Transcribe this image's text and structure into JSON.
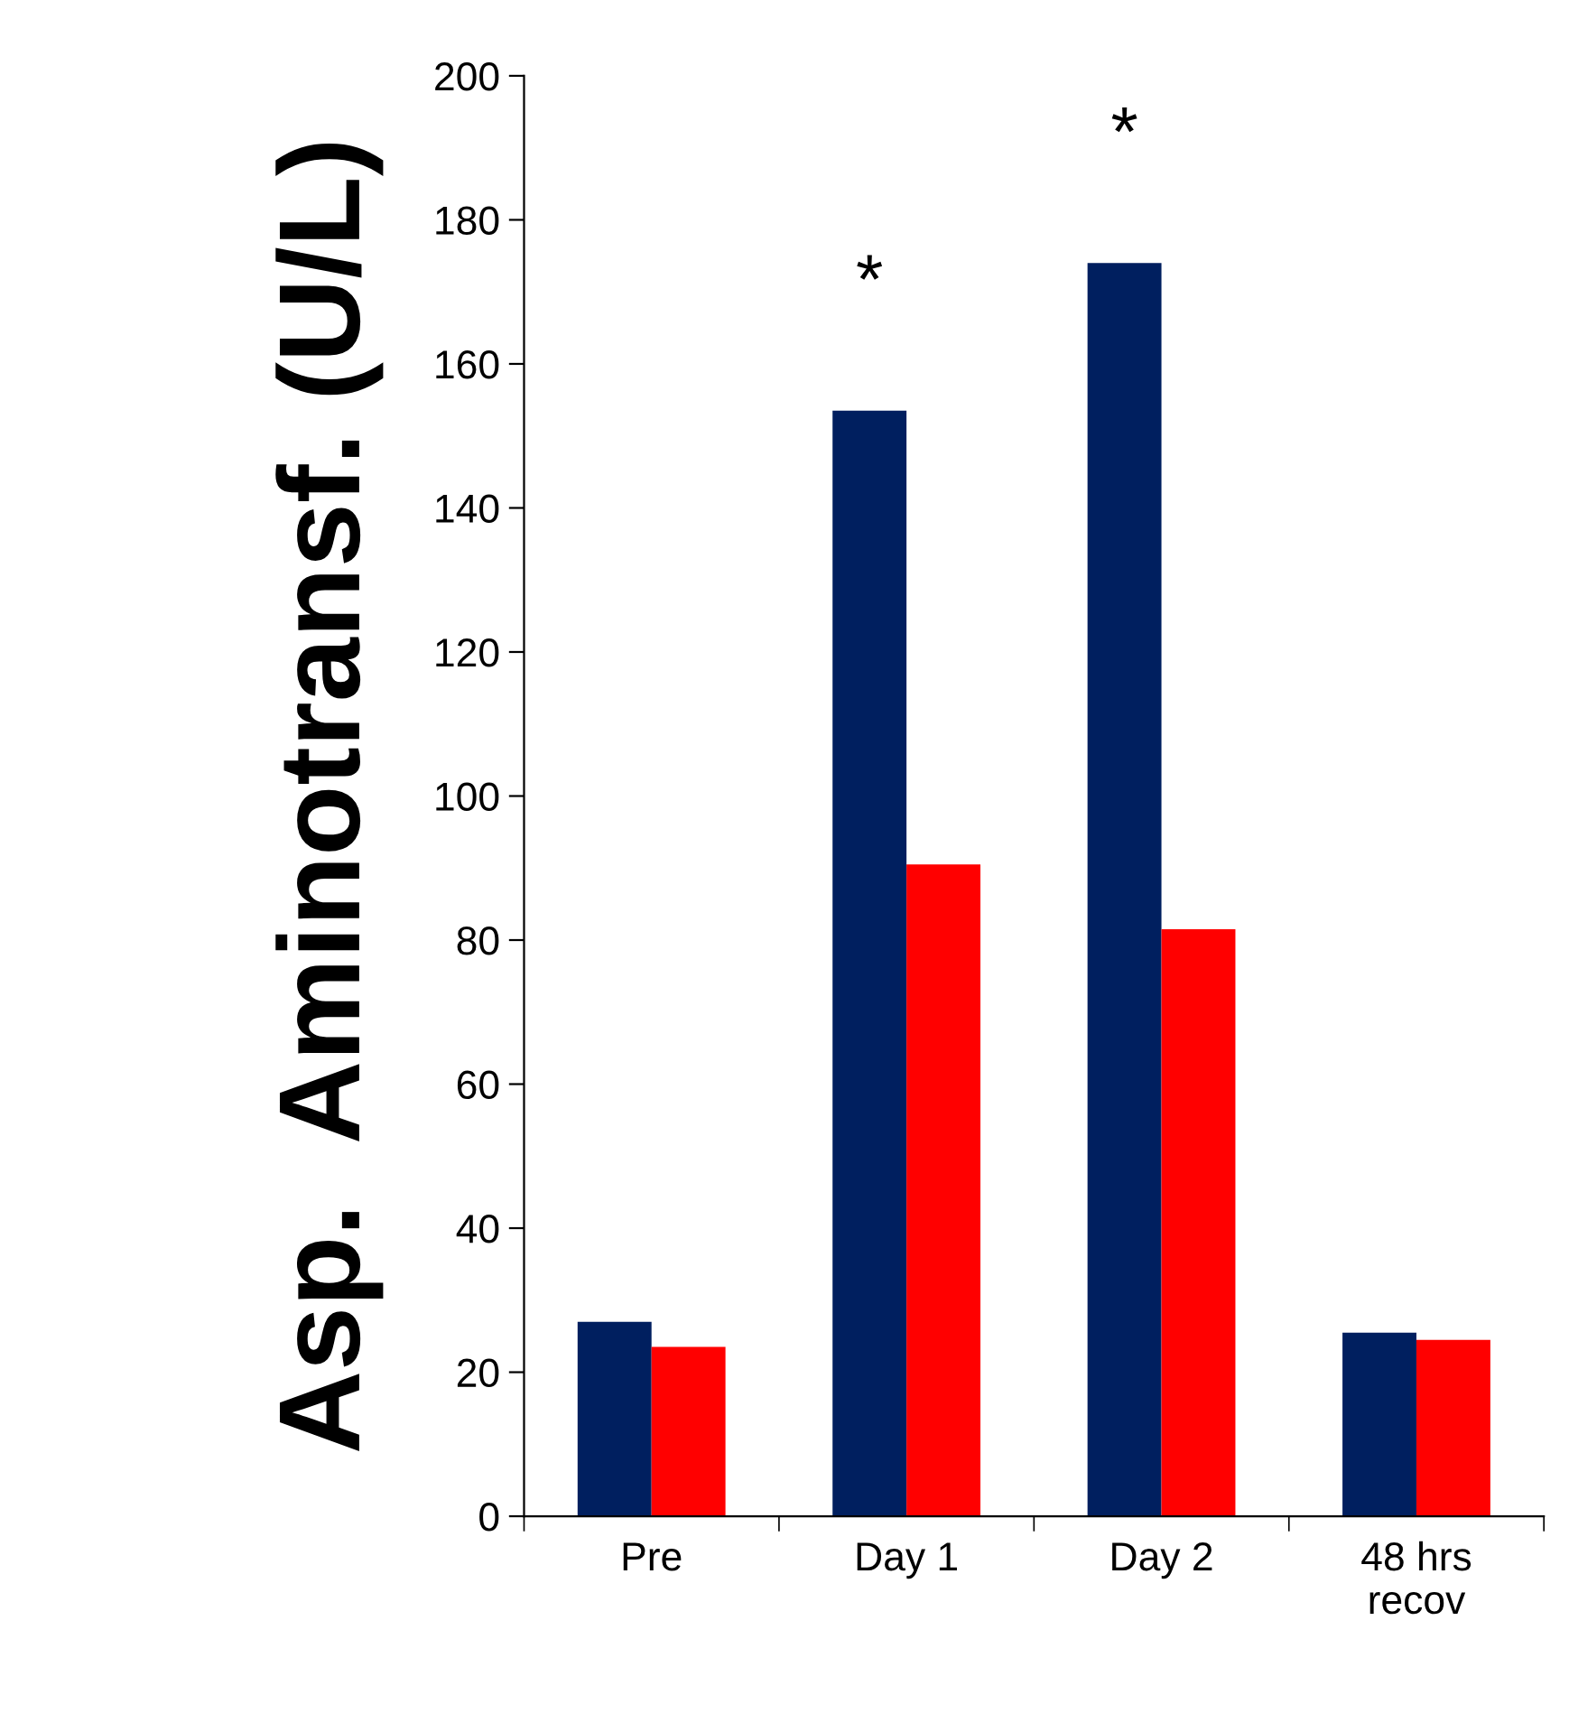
{
  "chart_data": {
    "type": "bar",
    "ylabel": "Asp.  Aminotransf. (U/L)",
    "categories": [
      "Pre",
      "Day 1",
      "Day 2",
      "48 hrs\nrecov"
    ],
    "series": [
      {
        "color": "#001f5f",
        "values": [
          27,
          153.5,
          174,
          25.5
        ]
      },
      {
        "color": "#ff0000",
        "values": [
          23.5,
          90.5,
          81.5,
          24.5
        ]
      }
    ],
    "ylim": [
      0,
      200
    ],
    "yticks": [
      0,
      20,
      40,
      60,
      80,
      100,
      120,
      140,
      160,
      180,
      200
    ],
    "grid": false,
    "legend": false,
    "annotations": [
      "*",
      "*"
    ]
  }
}
